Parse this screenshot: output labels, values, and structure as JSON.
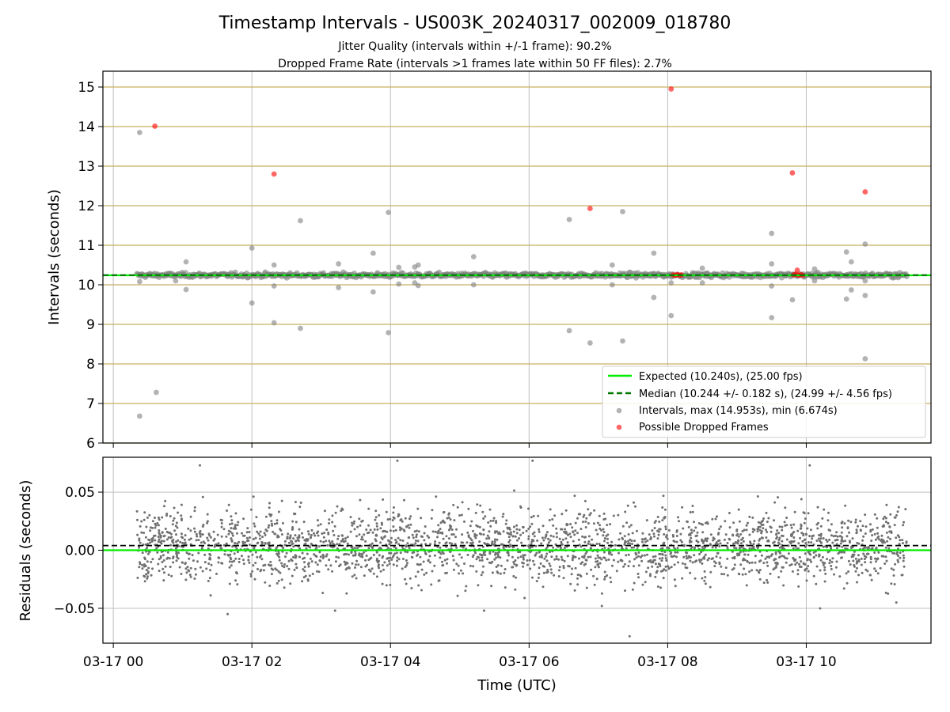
{
  "figure": {
    "title": "Timestamp Intervals - US003K_20240317_002009_018780",
    "subtitle_1": "Jitter Quality (intervals within +/-1 frame): 90.2%",
    "subtitle_2": "Dropped Frame Rate (intervals >1 frames late within 50 FF files): 2.7%",
    "xlabel": "Time (UTC)"
  },
  "colors": {
    "expected": "#00ee00",
    "median": "#007700",
    "intervals": "#808080",
    "dropped": "#ff0000",
    "hline": "#c8b060",
    "grid": "#bfbfbf"
  },
  "chart_data": [
    {
      "type": "scatter",
      "name": "intervals",
      "ylabel": "Intervals (seconds)",
      "xlabel": "",
      "x_unit": "hours after 03-17 00:00 UTC",
      "xlim": [
        -0.15,
        11.8
      ],
      "ylim": [
        6,
        15.4
      ],
      "xticks": [
        0,
        2,
        4,
        6,
        8,
        10
      ],
      "xtick_labels": [
        "03-17 00",
        "03-17 02",
        "03-17 04",
        "03-17 06",
        "03-17 08",
        "03-17 10"
      ],
      "yticks": [
        6,
        7,
        8,
        9,
        10,
        11,
        12,
        13,
        14,
        15
      ],
      "ytick_labels": [
        "6",
        "7",
        "8",
        "9",
        "10",
        "11",
        "12",
        "13",
        "14",
        "15"
      ],
      "grid": true,
      "expected": 10.24,
      "median": 10.244,
      "legend_position": "lower-right",
      "legend": [
        "Expected (10.240s), (25.00 fps)",
        "Median (10.244 +/- 0.182 s), (24.99 +/- 4.56 fps)",
        "Intervals, max (14.953s), min (6.674s)",
        "Possible Dropped Frames"
      ],
      "band": {
        "x_start": 0.34,
        "x_end": 11.45,
        "center": 10.244,
        "spread": 0.05
      },
      "outliers": [
        {
          "x": 0.38,
          "y": 13.85
        },
        {
          "x": 0.38,
          "y": 6.68
        },
        {
          "x": 0.38,
          "y": 10.08
        },
        {
          "x": 0.62,
          "y": 7.28
        },
        {
          "x": 0.9,
          "y": 10.1
        },
        {
          "x": 1.05,
          "y": 10.58
        },
        {
          "x": 1.05,
          "y": 9.88
        },
        {
          "x": 2.0,
          "y": 10.93
        },
        {
          "x": 2.0,
          "y": 9.54
        },
        {
          "x": 2.32,
          "y": 10.5
        },
        {
          "x": 2.32,
          "y": 9.97
        },
        {
          "x": 2.32,
          "y": 9.04
        },
        {
          "x": 2.7,
          "y": 11.62
        },
        {
          "x": 2.7,
          "y": 8.9
        },
        {
          "x": 3.25,
          "y": 10.53
        },
        {
          "x": 3.25,
          "y": 9.93
        },
        {
          "x": 3.75,
          "y": 10.8
        },
        {
          "x": 3.75,
          "y": 9.82
        },
        {
          "x": 3.97,
          "y": 11.83
        },
        {
          "x": 3.97,
          "y": 8.79
        },
        {
          "x": 4.12,
          "y": 10.44
        },
        {
          "x": 4.12,
          "y": 10.02
        },
        {
          "x": 4.35,
          "y": 10.45
        },
        {
          "x": 4.4,
          "y": 10.5
        },
        {
          "x": 4.4,
          "y": 9.98
        },
        {
          "x": 4.35,
          "y": 10.05
        },
        {
          "x": 5.2,
          "y": 10.71
        },
        {
          "x": 5.2,
          "y": 10.0
        },
        {
          "x": 6.58,
          "y": 11.65
        },
        {
          "x": 6.58,
          "y": 8.84
        },
        {
          "x": 6.88,
          "y": 8.53
        },
        {
          "x": 7.2,
          "y": 10.5
        },
        {
          "x": 7.2,
          "y": 10.0
        },
        {
          "x": 7.35,
          "y": 11.85
        },
        {
          "x": 7.35,
          "y": 8.58
        },
        {
          "x": 7.8,
          "y": 10.8
        },
        {
          "x": 7.8,
          "y": 9.68
        },
        {
          "x": 8.05,
          "y": 10.05
        },
        {
          "x": 8.05,
          "y": 9.22
        },
        {
          "x": 8.5,
          "y": 10.42
        },
        {
          "x": 8.5,
          "y": 10.05
        },
        {
          "x": 9.5,
          "y": 11.3
        },
        {
          "x": 9.5,
          "y": 10.53
        },
        {
          "x": 9.5,
          "y": 9.97
        },
        {
          "x": 9.5,
          "y": 9.17
        },
        {
          "x": 9.8,
          "y": 9.62
        },
        {
          "x": 10.12,
          "y": 10.4
        },
        {
          "x": 10.12,
          "y": 10.1
        },
        {
          "x": 10.58,
          "y": 10.83
        },
        {
          "x": 10.58,
          "y": 9.64
        },
        {
          "x": 10.65,
          "y": 10.58
        },
        {
          "x": 10.65,
          "y": 9.87
        },
        {
          "x": 10.85,
          "y": 11.03
        },
        {
          "x": 10.85,
          "y": 10.1
        },
        {
          "x": 10.85,
          "y": 9.73
        },
        {
          "x": 10.85,
          "y": 8.13
        }
      ],
      "dropped_frames": [
        {
          "x": 0.6,
          "y": 14.01
        },
        {
          "x": 2.32,
          "y": 12.8
        },
        {
          "x": 6.88,
          "y": 11.93
        },
        {
          "x": 8.05,
          "y": 14.95
        },
        {
          "x": 8.08,
          "y": 10.25
        },
        {
          "x": 8.11,
          "y": 10.24
        },
        {
          "x": 8.14,
          "y": 10.26
        },
        {
          "x": 8.17,
          "y": 10.24
        },
        {
          "x": 8.2,
          "y": 10.25
        },
        {
          "x": 9.8,
          "y": 12.83
        },
        {
          "x": 9.82,
          "y": 10.25
        },
        {
          "x": 9.85,
          "y": 10.27
        },
        {
          "x": 9.87,
          "y": 10.37
        },
        {
          "x": 9.89,
          "y": 10.24
        },
        {
          "x": 9.92,
          "y": 10.26
        },
        {
          "x": 9.95,
          "y": 10.24
        },
        {
          "x": 10.85,
          "y": 12.35
        }
      ]
    },
    {
      "type": "scatter",
      "name": "residuals",
      "ylabel": "Residuals (seconds)",
      "xlabel": "Time (UTC)",
      "x_unit": "hours after 03-17 00:00 UTC",
      "xlim": [
        -0.15,
        11.8
      ],
      "ylim": [
        -0.08,
        0.08
      ],
      "yticks": [
        -0.05,
        0.0,
        0.05
      ],
      "ytick_labels": [
        "−0.05",
        "0.00",
        "0.05"
      ],
      "grid": true,
      "expected_line": 0.0,
      "median_line": 0.004,
      "cloud": {
        "x_start": 0.34,
        "x_end": 11.45,
        "mean": 0.004,
        "std": 0.022
      },
      "extreme_points": [
        {
          "x": 1.25,
          "y": 0.073
        },
        {
          "x": 1.65,
          "y": -0.055
        },
        {
          "x": 3.2,
          "y": -0.052
        },
        {
          "x": 4.1,
          "y": 0.077
        },
        {
          "x": 5.35,
          "y": -0.052
        },
        {
          "x": 6.05,
          "y": 0.077
        },
        {
          "x": 7.45,
          "y": -0.074
        },
        {
          "x": 7.05,
          "y": -0.048
        },
        {
          "x": 10.05,
          "y": 0.073
        },
        {
          "x": 10.2,
          "y": -0.05
        },
        {
          "x": 11.3,
          "y": -0.045
        }
      ]
    }
  ]
}
